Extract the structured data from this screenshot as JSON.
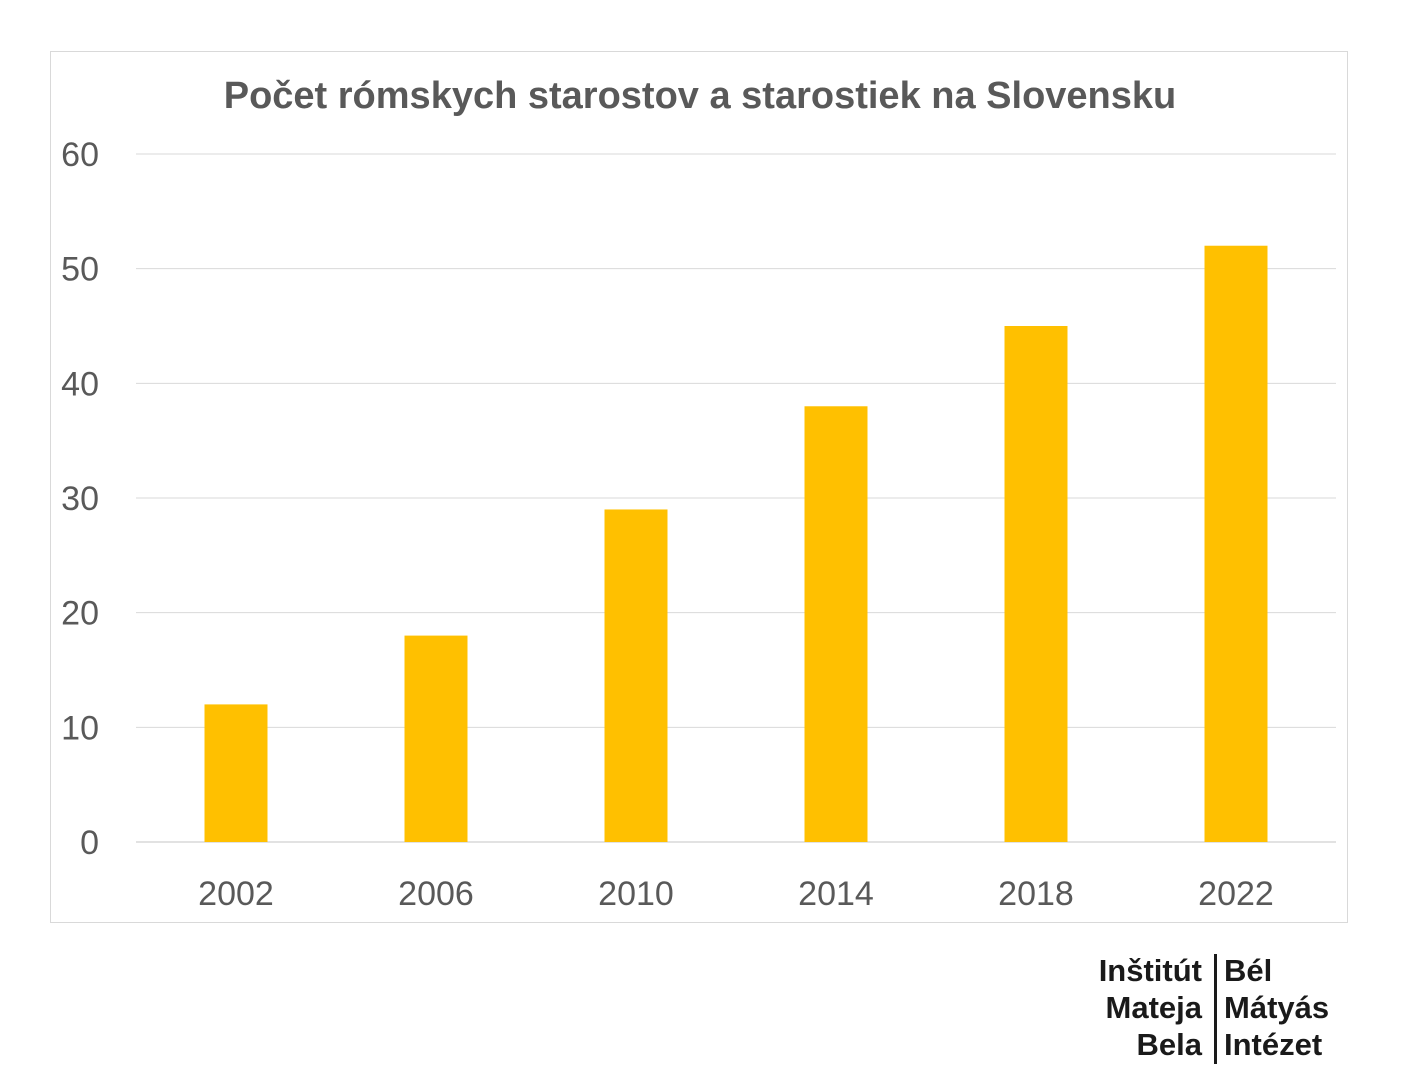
{
  "chart_data": {
    "type": "bar",
    "title": "Počet rómskych starostov a starostiek na Slovensku",
    "categories": [
      "2002",
      "2006",
      "2010",
      "2014",
      "2018",
      "2022"
    ],
    "values": [
      12,
      18,
      29,
      38,
      45,
      52
    ],
    "ylim": [
      0,
      60
    ],
    "yticks": [
      0,
      10,
      20,
      30,
      40,
      50,
      60
    ],
    "xlabel": "",
    "ylabel": "",
    "grid": true,
    "bar_color": "#ffc000"
  },
  "logo": {
    "left_lines": [
      "Inštitút",
      "Mateja",
      "Bela"
    ],
    "right_lines": [
      "Bél",
      "Mátyás",
      "Intézet"
    ]
  }
}
